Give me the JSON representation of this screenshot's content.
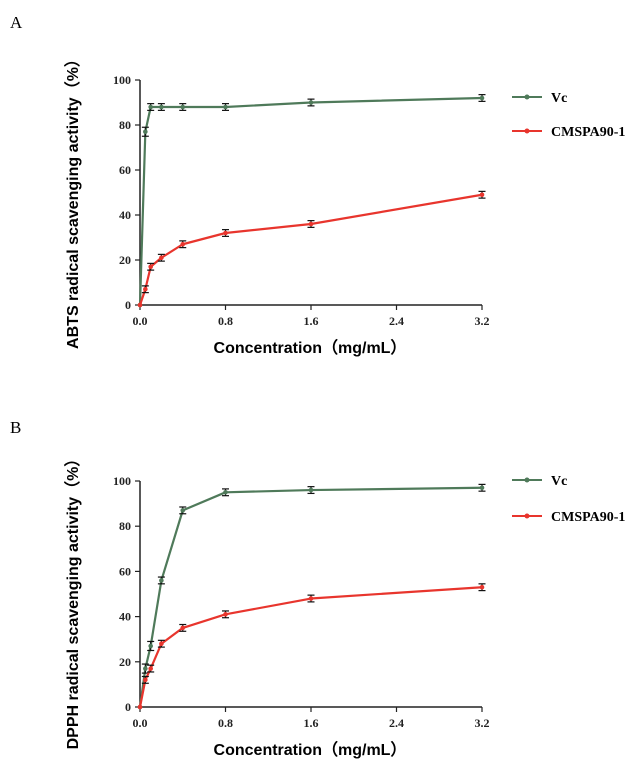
{
  "colors": {
    "vc": "#4f7a5a",
    "cmspa": "#e8352d",
    "axis": "#222222"
  },
  "chart_data": [
    {
      "panel": "A",
      "type": "line",
      "xlabel": "Concentration（mg/mL）",
      "ylabel": "ABTS radical scavenging activity（%）",
      "xlim": [
        0,
        3.2
      ],
      "ylim": [
        0,
        100
      ],
      "xticks": [
        "0.0",
        "0.8",
        "1.6",
        "2.4",
        "3.2"
      ],
      "yticks": [
        "0",
        "20",
        "40",
        "60",
        "80",
        "100"
      ],
      "legend": "right",
      "series": [
        {
          "name": "Vc",
          "color_key": "vc",
          "x": [
            0,
            0.05,
            0.1,
            0.2,
            0.4,
            0.8,
            1.6,
            3.2
          ],
          "y": [
            0,
            77,
            88,
            88,
            88,
            88,
            90,
            92
          ],
          "err": [
            0,
            2,
            1.5,
            1.5,
            1.5,
            1.5,
            1.5,
            1.5
          ]
        },
        {
          "name": "CMSPA90-1",
          "color_key": "cmspa",
          "x": [
            0,
            0.05,
            0.1,
            0.2,
            0.4,
            0.8,
            1.6,
            3.2
          ],
          "y": [
            0,
            7,
            17,
            21,
            27,
            32,
            36,
            49
          ],
          "err": [
            0,
            1.5,
            1.5,
            1.5,
            1.5,
            1.5,
            1.5,
            1.5
          ]
        }
      ]
    },
    {
      "panel": "B",
      "type": "line",
      "xlabel": "Concentration（mg/mL）",
      "ylabel": "DPPH radical scavenging activity（%）",
      "xlim": [
        0,
        3.2
      ],
      "ylim": [
        0,
        100
      ],
      "xticks": [
        "0.0",
        "0.8",
        "1.6",
        "2.4",
        "3.2"
      ],
      "yticks": [
        "0",
        "20",
        "40",
        "60",
        "80",
        "100"
      ],
      "legend": "right",
      "series": [
        {
          "name": "Vc",
          "color_key": "vc",
          "x": [
            0,
            0.05,
            0.1,
            0.2,
            0.4,
            0.8,
            1.6,
            3.2
          ],
          "y": [
            0,
            17,
            27,
            56,
            87,
            95,
            96,
            97
          ],
          "err": [
            0,
            2,
            2,
            1.5,
            1.5,
            1.5,
            1.5,
            1.5
          ]
        },
        {
          "name": "CMSPA90-1",
          "color_key": "cmspa",
          "x": [
            0,
            0.05,
            0.1,
            0.2,
            0.4,
            0.8,
            1.6,
            3.2
          ],
          "y": [
            0,
            12,
            17,
            28,
            35,
            41,
            48,
            53
          ],
          "err": [
            0,
            1.5,
            1.5,
            1.5,
            1.5,
            1.5,
            1.5,
            1.5
          ]
        }
      ]
    }
  ]
}
